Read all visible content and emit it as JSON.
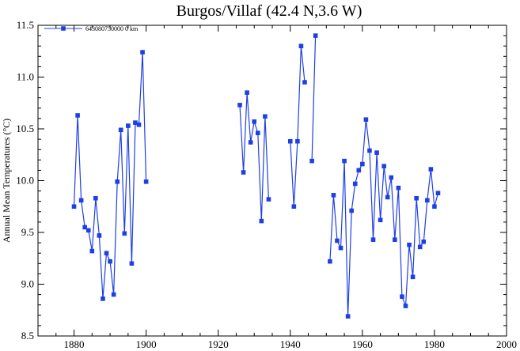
{
  "chart_data": {
    "type": "line",
    "title": "Burgos/Villaf (42.4 N,3.6 W)",
    "xlabel": "",
    "ylabel": "Annual Mean Temperatures (°C)",
    "xlim": [
      1870,
      2000
    ],
    "ylim": [
      8.5,
      11.5
    ],
    "xticks": [
      1880,
      1900,
      1920,
      1940,
      1960,
      1980,
      2000
    ],
    "yticks": [
      8.5,
      9.0,
      9.5,
      10.0,
      10.5,
      11.0,
      11.5
    ],
    "grid": false,
    "legend": "top-left",
    "color": "#1f3fe6",
    "series": [
      {
        "name": "643080750000  0 km",
        "segments": [
          [
            [
              1880,
              9.75
            ],
            [
              1881,
              10.63
            ],
            [
              1882,
              9.81
            ],
            [
              1883,
              9.55
            ],
            [
              1884,
              9.52
            ],
            [
              1885,
              9.32
            ],
            [
              1886,
              9.83
            ],
            [
              1887,
              9.47
            ],
            [
              1888,
              8.86
            ],
            [
              1889,
              9.3
            ],
            [
              1890,
              9.22
            ],
            [
              1891,
              8.9
            ],
            [
              1892,
              9.99
            ],
            [
              1893,
              10.49
            ],
            [
              1894,
              9.49
            ],
            [
              1895,
              10.53
            ],
            [
              1896,
              9.2
            ],
            [
              1897,
              10.56
            ],
            [
              1898,
              10.54
            ],
            [
              1899,
              11.24
            ],
            [
              1900,
              9.99
            ]
          ],
          [
            [
              1926,
              10.73
            ],
            [
              1927,
              10.08
            ],
            [
              1928,
              10.85
            ],
            [
              1929,
              10.37
            ],
            [
              1930,
              10.57
            ],
            [
              1931,
              10.46
            ],
            [
              1932,
              9.61
            ],
            [
              1933,
              10.62
            ],
            [
              1934,
              9.82
            ]
          ],
          [
            [
              1940,
              10.38
            ],
            [
              1941,
              9.75
            ],
            [
              1942,
              10.38
            ],
            [
              1943,
              11.3
            ],
            [
              1944,
              10.95
            ]
          ],
          [
            [
              1946,
              10.19
            ],
            [
              1947,
              11.4
            ]
          ],
          [
            [
              1951,
              9.22
            ],
            [
              1952,
              9.86
            ],
            [
              1953,
              9.42
            ],
            [
              1954,
              9.35
            ],
            [
              1955,
              10.19
            ],
            [
              1956,
              8.69
            ],
            [
              1957,
              9.71
            ],
            [
              1958,
              9.97
            ],
            [
              1959,
              10.1
            ],
            [
              1960,
              10.16
            ],
            [
              1961,
              10.59
            ],
            [
              1962,
              10.29
            ],
            [
              1963,
              9.43
            ],
            [
              1964,
              10.27
            ],
            [
              1965,
              9.62
            ],
            [
              1966,
              10.14
            ],
            [
              1967,
              9.84
            ],
            [
              1968,
              10.03
            ],
            [
              1969,
              9.43
            ],
            [
              1970,
              9.93
            ],
            [
              1971,
              8.88
            ],
            [
              1972,
              8.79
            ],
            [
              1973,
              9.38
            ],
            [
              1974,
              9.07
            ],
            [
              1975,
              9.83
            ],
            [
              1976,
              9.36
            ],
            [
              1977,
              9.41
            ],
            [
              1978,
              9.81
            ],
            [
              1979,
              10.11
            ],
            [
              1980,
              9.75
            ],
            [
              1981,
              9.88
            ]
          ]
        ]
      }
    ]
  }
}
